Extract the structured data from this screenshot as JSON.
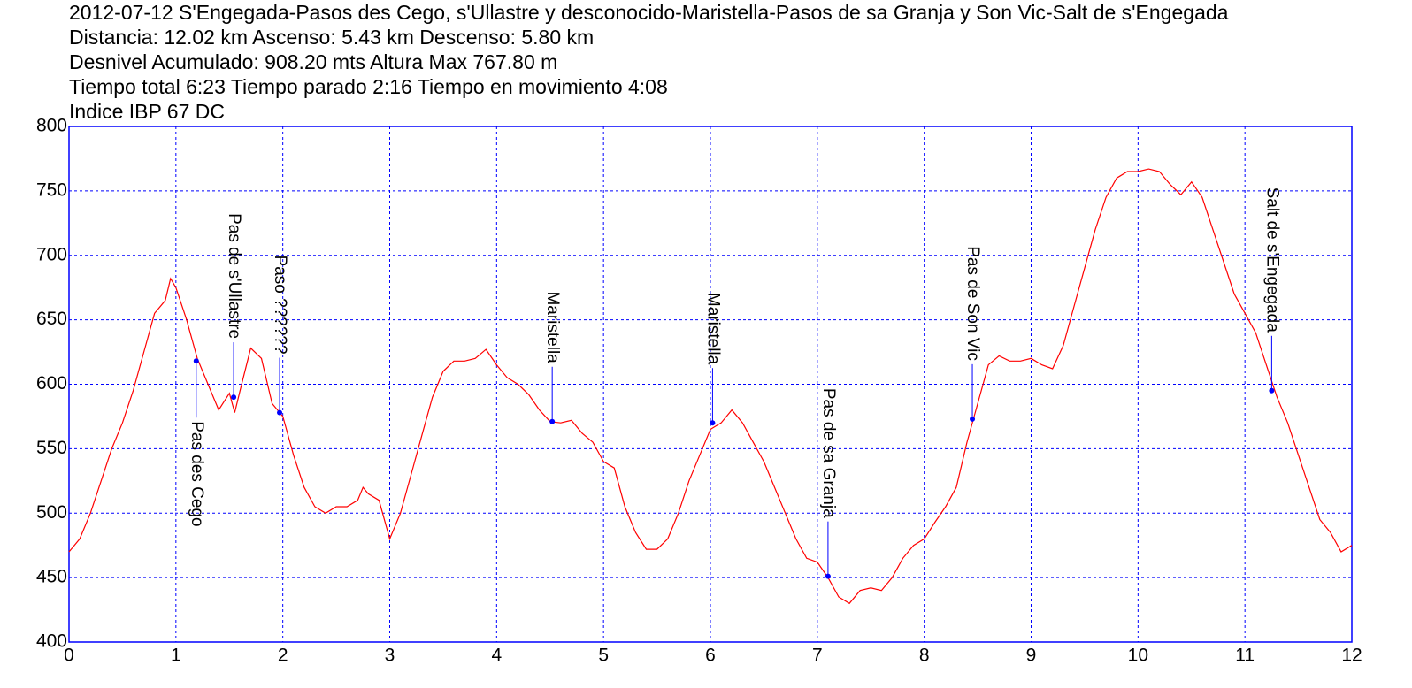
{
  "chart_data": {
    "type": "line",
    "title": "2012-07-12 S'Engegada-Pasos des Cego, s'Ullastre y desconocido-Maristella-Pasos de sa Granja y Son Vic-Salt de s'Engegada",
    "info_lines": [
      "Distancia: 12.02 km Ascenso: 5.43 km Descenso: 5.80 km",
      "Desnivel Acumulado: 908.20 mts  Altura Max 767.80 m",
      "Tiempo total 6:23 Tiempo parado 2:16 Tiempo en movimiento 4:08",
      "Indice IBP 67 DC"
    ],
    "x": [
      0,
      0.1,
      0.2,
      0.3,
      0.4,
      0.5,
      0.6,
      0.7,
      0.8,
      0.9,
      0.95,
      1.0,
      1.1,
      1.2,
      1.3,
      1.4,
      1.5,
      1.55,
      1.6,
      1.7,
      1.8,
      1.9,
      2.0,
      2.1,
      2.2,
      2.3,
      2.4,
      2.5,
      2.6,
      2.7,
      2.75,
      2.8,
      2.9,
      3.0,
      3.1,
      3.2,
      3.3,
      3.4,
      3.5,
      3.6,
      3.7,
      3.8,
      3.9,
      4.0,
      4.1,
      4.2,
      4.3,
      4.4,
      4.5,
      4.6,
      4.7,
      4.8,
      4.9,
      5.0,
      5.1,
      5.2,
      5.3,
      5.4,
      5.5,
      5.6,
      5.7,
      5.8,
      5.9,
      6.0,
      6.1,
      6.2,
      6.3,
      6.4,
      6.5,
      6.6,
      6.7,
      6.8,
      6.9,
      7.0,
      7.1,
      7.2,
      7.3,
      7.4,
      7.5,
      7.6,
      7.7,
      7.8,
      7.9,
      8.0,
      8.1,
      8.2,
      8.3,
      8.4,
      8.5,
      8.6,
      8.7,
      8.8,
      8.9,
      9.0,
      9.1,
      9.2,
      9.3,
      9.4,
      9.5,
      9.6,
      9.7,
      9.8,
      9.9,
      10.0,
      10.1,
      10.2,
      10.3,
      10.4,
      10.5,
      10.6,
      10.7,
      10.8,
      10.9,
      11.0,
      11.1,
      11.2,
      11.3,
      11.4,
      11.5,
      11.6,
      11.7,
      11.8,
      11.9,
      12.0
    ],
    "values": [
      470,
      480,
      500,
      525,
      550,
      570,
      595,
      625,
      655,
      665,
      682,
      675,
      650,
      620,
      600,
      580,
      593,
      578,
      595,
      628,
      620,
      585,
      575,
      545,
      520,
      505,
      500,
      505,
      505,
      510,
      520,
      515,
      510,
      480,
      500,
      530,
      560,
      590,
      610,
      618,
      618,
      620,
      627,
      615,
      605,
      600,
      592,
      580,
      571,
      570,
      572,
      562,
      555,
      540,
      535,
      505,
      485,
      472,
      472,
      480,
      500,
      525,
      545,
      565,
      570,
      580,
      570,
      555,
      540,
      520,
      500,
      480,
      465,
      462,
      450,
      435,
      430,
      440,
      442,
      440,
      450,
      465,
      475,
      480,
      493,
      505,
      520,
      555,
      585,
      615,
      622,
      618,
      618,
      620,
      615,
      612,
      630,
      660,
      690,
      720,
      745,
      760,
      765,
      765,
      767,
      765,
      755,
      747,
      757,
      745,
      720,
      695,
      670,
      655,
      640,
      615,
      590,
      570,
      545,
      520,
      495,
      485,
      470,
      475
    ],
    "color": "#ff0000",
    "waypoints": [
      {
        "name": "Pas des Cego",
        "x": 1.19,
        "y": 618,
        "label_position": "below"
      },
      {
        "name": "Pas de s'Ullastre",
        "x": 1.54,
        "y": 590,
        "label_position": "above"
      },
      {
        "name": "Paso ??????",
        "x": 1.97,
        "y": 578,
        "label_position": "above"
      },
      {
        "name": "Maristella",
        "x": 4.52,
        "y": 571,
        "label_position": "above"
      },
      {
        "name": "Maristella",
        "x": 6.02,
        "y": 570,
        "label_position": "above"
      },
      {
        "name": "Pas de sa Granja",
        "x": 7.1,
        "y": 451,
        "label_position": "above"
      },
      {
        "name": "Pas de Son Vic",
        "x": 8.45,
        "y": 573,
        "label_position": "above"
      },
      {
        "name": "Salt de s'Engegada",
        "x": 11.25,
        "y": 595,
        "label_position": "above"
      }
    ],
    "waypoint_color": "#0000ff",
    "xlim": [
      0,
      12
    ],
    "xticks": [
      0,
      1,
      2,
      3,
      4,
      5,
      6,
      7,
      8,
      9,
      10,
      11,
      12
    ],
    "ylim": [
      400,
      800
    ],
    "yticks": [
      400,
      450,
      500,
      550,
      600,
      650,
      700,
      750,
      800
    ],
    "grid": true,
    "grid_color": "#0000ff"
  }
}
